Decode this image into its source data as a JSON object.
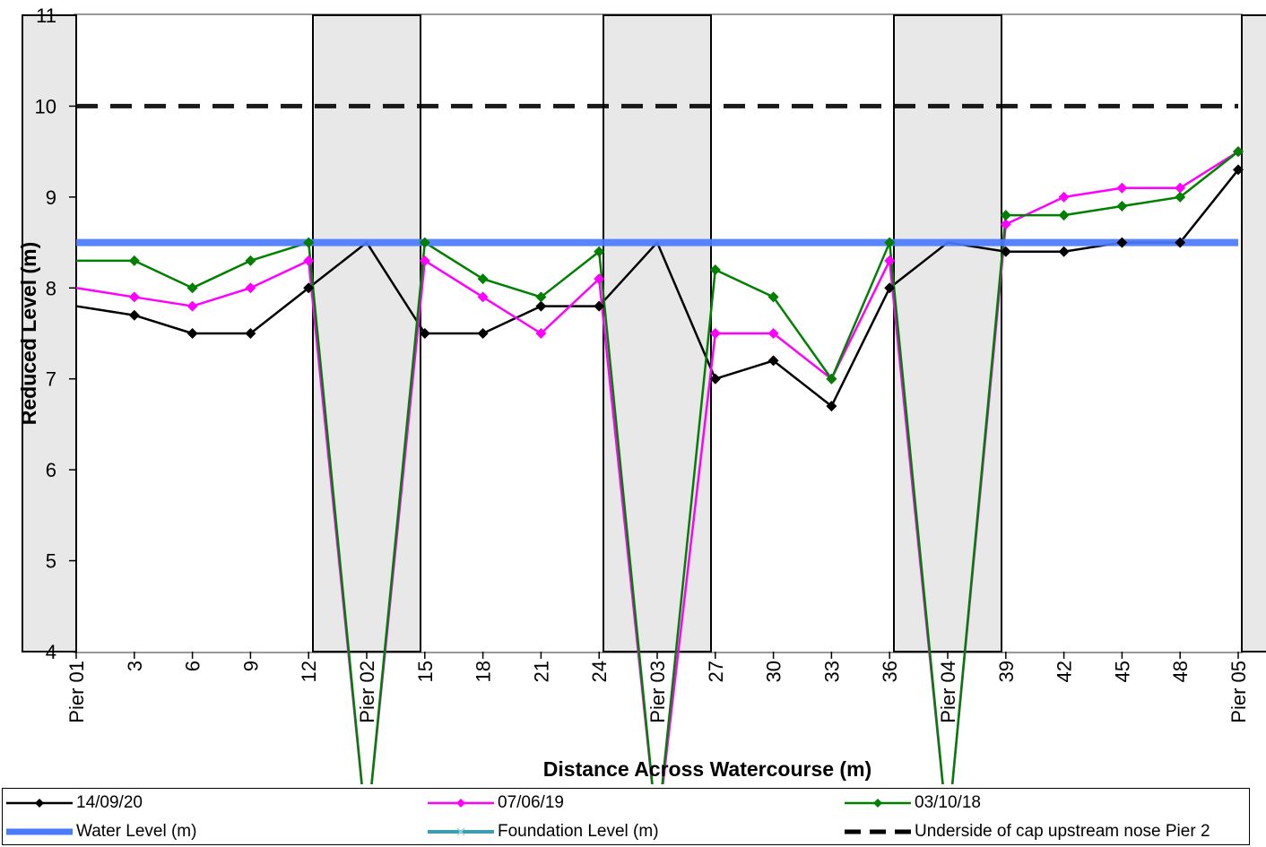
{
  "chart_data": {
    "type": "line",
    "ylabel": "Reduced Level (m)",
    "xlabel": "Distance Across Watercourse (m)",
    "ylim": [
      4,
      11
    ],
    "yticks": [
      4,
      5,
      6,
      7,
      8,
      9,
      10,
      11
    ],
    "categories": [
      "Pier 01",
      "3",
      "6",
      "9",
      "12",
      "Pier 02",
      "15",
      "18",
      "21",
      "24",
      "Pier 03",
      "27",
      "30",
      "33",
      "36",
      "Pier 04",
      "39",
      "42",
      "45",
      "48",
      "Pier 05"
    ],
    "piers": [
      "Pier 01",
      "Pier 02",
      "Pier 03",
      "Pier 04",
      "Pier 05"
    ],
    "series": [
      {
        "name": "14/09/20",
        "color": "#000000",
        "values": [
          7.8,
          7.7,
          7.5,
          7.5,
          8.0,
          8.5,
          7.5,
          7.5,
          7.8,
          7.8,
          8.5,
          7.0,
          7.2,
          6.7,
          8.0,
          8.5,
          8.4,
          8.4,
          8.5,
          8.5,
          9.3
        ]
      },
      {
        "name": "07/06/19",
        "color": "#ff00ff",
        "values": [
          8.0,
          7.9,
          7.8,
          8.0,
          8.3,
          null,
          8.3,
          7.9,
          7.5,
          8.1,
          null,
          7.5,
          7.5,
          7.0,
          8.3,
          null,
          8.7,
          9.0,
          9.1,
          9.1,
          9.5
        ]
      },
      {
        "name": "03/10/18",
        "color": "#008000",
        "values": [
          8.3,
          8.3,
          8.0,
          8.3,
          8.5,
          null,
          8.5,
          8.1,
          7.9,
          8.4,
          null,
          8.2,
          7.9,
          7.0,
          8.5,
          null,
          8.8,
          8.8,
          8.9,
          9.0,
          9.5
        ]
      },
      {
        "name": "Water Level (m)",
        "color": "#4a7bff",
        "constant": 8.5
      },
      {
        "name": "Foundation Level (m)",
        "color": "#3aa0b0"
      },
      {
        "name": "Underside of cap upstream nose Pier 2",
        "color": "#000000",
        "constant": 10,
        "dashed": true
      }
    ],
    "grid": false,
    "legend_position": "bottom"
  }
}
